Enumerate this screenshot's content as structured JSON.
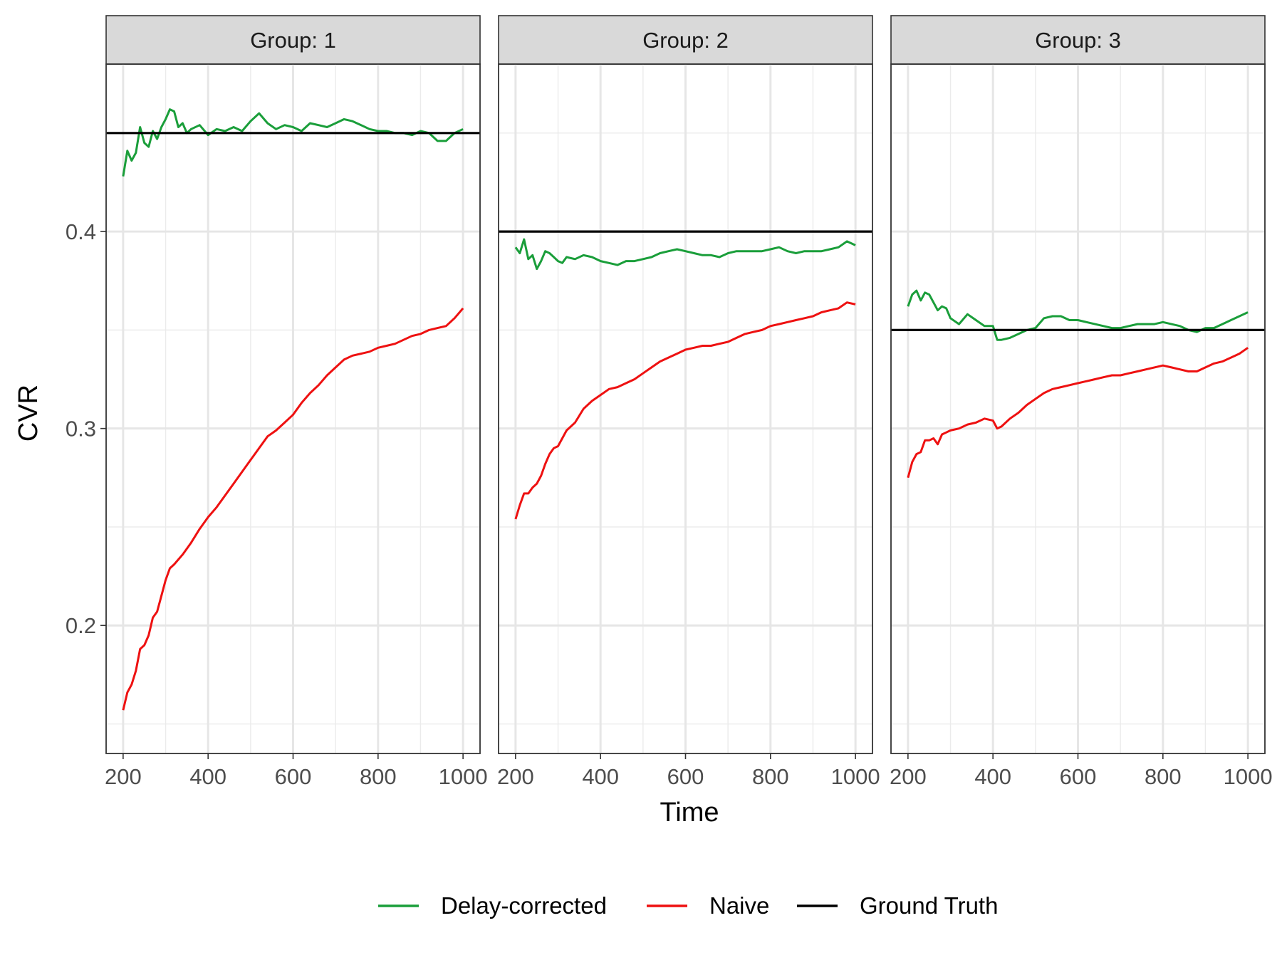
{
  "chart_data": {
    "type": "line",
    "xlabel": "Time",
    "ylabel": "CVR",
    "xlim": [
      160,
      1040
    ],
    "ylim": [
      0.135,
      0.485
    ],
    "x_ticks": [
      200,
      400,
      600,
      800,
      1000
    ],
    "x_tick_labels": [
      "200",
      "400",
      "600",
      "800",
      "1000"
    ],
    "y_ticks": [
      0.2,
      0.3,
      0.4
    ],
    "y_tick_labels": [
      "0.2",
      "0.3",
      "0.4"
    ],
    "grid": true,
    "legend_position": "bottom",
    "legend": [
      {
        "label": "Delay-corrected",
        "color": "#1a9e3a"
      },
      {
        "label": "Naive",
        "color": "#ee1111"
      },
      {
        "label": "Ground Truth",
        "color": "#000000"
      }
    ],
    "panels": [
      {
        "strip_label": "Group: 1",
        "ground_truth": 0.45,
        "series": [
          {
            "name": "Delay-corrected",
            "color": "#1a9e3a",
            "x": [
              200,
              210,
              220,
              230,
              240,
              250,
              260,
              270,
              280,
              290,
              300,
              310,
              320,
              330,
              340,
              350,
              360,
              380,
              400,
              420,
              440,
              460,
              480,
              500,
              520,
              540,
              560,
              580,
              600,
              620,
              640,
              660,
              680,
              700,
              720,
              740,
              760,
              780,
              800,
              820,
              840,
              860,
              880,
              900,
              920,
              940,
              960,
              980,
              1000
            ],
            "y": [
              0.428,
              0.441,
              0.436,
              0.44,
              0.453,
              0.445,
              0.443,
              0.451,
              0.447,
              0.453,
              0.457,
              0.462,
              0.461,
              0.453,
              0.455,
              0.45,
              0.452,
              0.454,
              0.449,
              0.452,
              0.451,
              0.453,
              0.451,
              0.456,
              0.46,
              0.455,
              0.452,
              0.454,
              0.453,
              0.451,
              0.455,
              0.454,
              0.453,
              0.455,
              0.457,
              0.456,
              0.454,
              0.452,
              0.451,
              0.451,
              0.45,
              0.45,
              0.449,
              0.451,
              0.45,
              0.446,
              0.446,
              0.45,
              0.452
            ]
          },
          {
            "name": "Naive",
            "color": "#ee1111",
            "x": [
              200,
              210,
              220,
              230,
              240,
              250,
              260,
              270,
              280,
              290,
              300,
              310,
              320,
              340,
              360,
              380,
              400,
              420,
              440,
              460,
              480,
              500,
              520,
              540,
              560,
              580,
              600,
              620,
              640,
              660,
              680,
              700,
              720,
              740,
              760,
              780,
              800,
              820,
              840,
              860,
              880,
              900,
              920,
              940,
              960,
              980,
              1000
            ],
            "y": [
              0.157,
              0.166,
              0.17,
              0.177,
              0.188,
              0.19,
              0.195,
              0.204,
              0.207,
              0.215,
              0.223,
              0.229,
              0.231,
              0.236,
              0.242,
              0.249,
              0.255,
              0.26,
              0.266,
              0.272,
              0.278,
              0.284,
              0.29,
              0.296,
              0.299,
              0.303,
              0.307,
              0.313,
              0.318,
              0.322,
              0.327,
              0.331,
              0.335,
              0.337,
              0.338,
              0.339,
              0.341,
              0.342,
              0.343,
              0.345,
              0.347,
              0.348,
              0.35,
              0.351,
              0.352,
              0.356,
              0.361
            ]
          },
          {
            "name": "Ground Truth",
            "color": "#000000",
            "x": [
              160,
              1040
            ],
            "y": [
              0.45,
              0.45
            ]
          }
        ]
      },
      {
        "strip_label": "Group: 2",
        "ground_truth": 0.4,
        "series": [
          {
            "name": "Delay-corrected",
            "color": "#1a9e3a",
            "x": [
              200,
              210,
              220,
              230,
              240,
              250,
              260,
              270,
              280,
              290,
              300,
              310,
              320,
              340,
              360,
              380,
              400,
              420,
              440,
              460,
              480,
              500,
              520,
              540,
              560,
              580,
              600,
              620,
              640,
              660,
              680,
              700,
              720,
              740,
              760,
              780,
              800,
              820,
              840,
              860,
              880,
              900,
              920,
              940,
              960,
              980,
              1000
            ],
            "y": [
              0.392,
              0.389,
              0.396,
              0.386,
              0.388,
              0.381,
              0.385,
              0.39,
              0.389,
              0.387,
              0.385,
              0.384,
              0.387,
              0.386,
              0.388,
              0.387,
              0.385,
              0.384,
              0.383,
              0.385,
              0.385,
              0.386,
              0.387,
              0.389,
              0.39,
              0.391,
              0.39,
              0.389,
              0.388,
              0.388,
              0.387,
              0.389,
              0.39,
              0.39,
              0.39,
              0.39,
              0.391,
              0.392,
              0.39,
              0.389,
              0.39,
              0.39,
              0.39,
              0.391,
              0.392,
              0.395,
              0.393
            ]
          },
          {
            "name": "Naive",
            "color": "#ee1111",
            "x": [
              200,
              210,
              220,
              230,
              240,
              250,
              260,
              270,
              280,
              290,
              300,
              320,
              340,
              360,
              380,
              400,
              420,
              440,
              460,
              480,
              500,
              520,
              540,
              560,
              580,
              600,
              620,
              640,
              660,
              680,
              700,
              720,
              740,
              760,
              780,
              800,
              820,
              840,
              860,
              880,
              900,
              920,
              940,
              960,
              980,
              1000
            ],
            "y": [
              0.254,
              0.261,
              0.267,
              0.267,
              0.27,
              0.272,
              0.276,
              0.282,
              0.287,
              0.29,
              0.291,
              0.299,
              0.303,
              0.31,
              0.314,
              0.317,
              0.32,
              0.321,
              0.323,
              0.325,
              0.328,
              0.331,
              0.334,
              0.336,
              0.338,
              0.34,
              0.341,
              0.342,
              0.342,
              0.343,
              0.344,
              0.346,
              0.348,
              0.349,
              0.35,
              0.352,
              0.353,
              0.354,
              0.355,
              0.356,
              0.357,
              0.359,
              0.36,
              0.361,
              0.364,
              0.363
            ]
          },
          {
            "name": "Ground Truth",
            "color": "#000000",
            "x": [
              160,
              1040
            ],
            "y": [
              0.4,
              0.4
            ]
          }
        ]
      },
      {
        "strip_label": "Group: 3",
        "ground_truth": 0.35,
        "series": [
          {
            "name": "Delay-corrected",
            "color": "#1a9e3a",
            "x": [
              200,
              210,
              220,
              230,
              240,
              250,
              260,
              270,
              280,
              290,
              300,
              320,
              340,
              360,
              380,
              400,
              410,
              420,
              440,
              460,
              480,
              500,
              520,
              540,
              560,
              580,
              600,
              620,
              640,
              660,
              680,
              700,
              720,
              740,
              760,
              780,
              800,
              820,
              840,
              860,
              880,
              900,
              920,
              940,
              960,
              980,
              1000
            ],
            "y": [
              0.362,
              0.368,
              0.37,
              0.365,
              0.369,
              0.368,
              0.364,
              0.36,
              0.362,
              0.361,
              0.356,
              0.353,
              0.358,
              0.355,
              0.352,
              0.352,
              0.345,
              0.345,
              0.346,
              0.348,
              0.35,
              0.351,
              0.356,
              0.357,
              0.357,
              0.355,
              0.355,
              0.354,
              0.353,
              0.352,
              0.351,
              0.351,
              0.352,
              0.353,
              0.353,
              0.353,
              0.354,
              0.353,
              0.352,
              0.35,
              0.349,
              0.351,
              0.351,
              0.353,
              0.355,
              0.357,
              0.359
            ]
          },
          {
            "name": "Naive",
            "color": "#ee1111",
            "x": [
              200,
              210,
              220,
              230,
              240,
              250,
              260,
              270,
              280,
              290,
              300,
              320,
              340,
              360,
              380,
              400,
              410,
              420,
              440,
              460,
              480,
              500,
              520,
              540,
              560,
              580,
              600,
              620,
              640,
              660,
              680,
              700,
              720,
              740,
              760,
              780,
              800,
              820,
              840,
              860,
              880,
              900,
              920,
              940,
              960,
              980,
              1000
            ],
            "y": [
              0.275,
              0.283,
              0.287,
              0.288,
              0.294,
              0.294,
              0.295,
              0.292,
              0.297,
              0.298,
              0.299,
              0.3,
              0.302,
              0.303,
              0.305,
              0.304,
              0.3,
              0.301,
              0.305,
              0.308,
              0.312,
              0.315,
              0.318,
              0.32,
              0.321,
              0.322,
              0.323,
              0.324,
              0.325,
              0.326,
              0.327,
              0.327,
              0.328,
              0.329,
              0.33,
              0.331,
              0.332,
              0.331,
              0.33,
              0.329,
              0.329,
              0.331,
              0.333,
              0.334,
              0.336,
              0.338,
              0.341
            ]
          },
          {
            "name": "Ground Truth",
            "color": "#000000",
            "x": [
              160,
              1040
            ],
            "y": [
              0.35,
              0.35
            ]
          }
        ]
      }
    ]
  }
}
